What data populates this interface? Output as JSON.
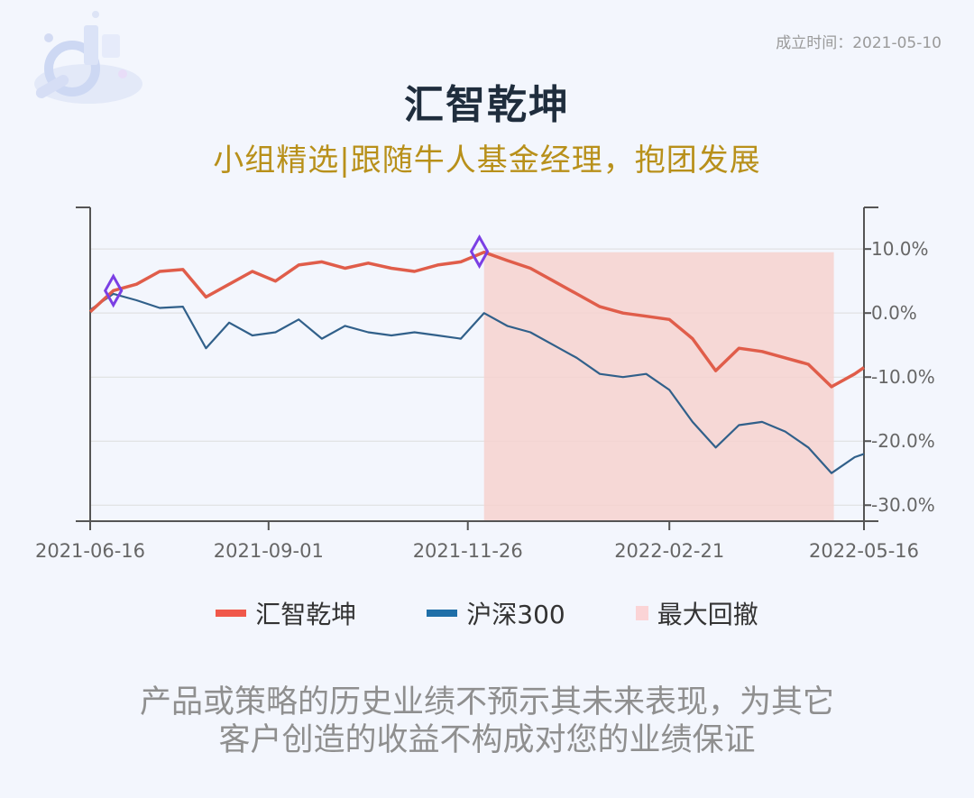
{
  "header": {
    "founded": "成立时间：2021-05-10",
    "title": "汇智乾坤",
    "subtitle": "小组精选|跟随牛人基金经理，抱团发展"
  },
  "legend": {
    "fund": "汇智乾坤",
    "index": "沪深300",
    "drawdown": "最大回撤"
  },
  "disclaimer": {
    "line1": "产品或策略的历史业绩不预示其未来表现，为其它",
    "line2": "客户创造的收益不构成对您的业绩保证"
  },
  "colors": {
    "fund": "#e05d4a",
    "index": "#31608a",
    "drawdown": "#f6d2cf",
    "marker": "#7b3fe4",
    "axis": "#555555",
    "grid": "#dddddd"
  },
  "chart_data": {
    "type": "line",
    "x_ticks": [
      "2021-06-16",
      "2021-09-01",
      "2021-11-26",
      "2022-02-21",
      "2022-05-16"
    ],
    "y_ticks": [
      "10.0%",
      "0.0%",
      "-10.0%",
      "-20.0%",
      "-30.0%"
    ],
    "ylim": [
      -32.5,
      16.5
    ],
    "grid": true,
    "legend_position": "bottom",
    "series": [
      {
        "name": "汇智乾坤",
        "x": [
          "2021-06-16",
          "2021-06-26",
          "2021-07-06",
          "2021-07-16",
          "2021-07-26",
          "2021-08-05",
          "2021-08-15",
          "2021-08-25",
          "2021-09-04",
          "2021-09-14",
          "2021-09-24",
          "2021-10-04",
          "2021-10-14",
          "2021-10-24",
          "2021-11-03",
          "2021-11-13",
          "2021-11-23",
          "2021-12-03",
          "2021-12-13",
          "2021-12-23",
          "2022-01-02",
          "2022-01-12",
          "2022-01-22",
          "2022-02-01",
          "2022-02-11",
          "2022-02-21",
          "2022-03-03",
          "2022-03-13",
          "2022-03-23",
          "2022-04-02",
          "2022-04-12",
          "2022-04-22",
          "2022-05-02",
          "2022-05-12",
          "2022-05-16"
        ],
        "y": [
          0.2,
          3.5,
          4.5,
          6.5,
          6.8,
          2.5,
          4.5,
          6.5,
          5.0,
          7.5,
          8.0,
          7.0,
          7.8,
          7.0,
          6.5,
          7.5,
          8.0,
          9.5,
          8.2,
          7.0,
          5.0,
          3.0,
          1.0,
          0.0,
          -0.5,
          -1.0,
          -4.0,
          -9.0,
          -5.5,
          -6.0,
          -7.0,
          -8.0,
          -11.5,
          -9.5,
          -8.5
        ]
      },
      {
        "name": "沪深300",
        "x": [
          "2021-06-16",
          "2021-06-26",
          "2021-07-06",
          "2021-07-16",
          "2021-07-26",
          "2021-08-05",
          "2021-08-15",
          "2021-08-25",
          "2021-09-04",
          "2021-09-14",
          "2021-09-24",
          "2021-10-04",
          "2021-10-14",
          "2021-10-24",
          "2021-11-03",
          "2021-11-13",
          "2021-11-23",
          "2021-12-03",
          "2021-12-13",
          "2021-12-23",
          "2022-01-02",
          "2022-01-12",
          "2022-01-22",
          "2022-02-01",
          "2022-02-11",
          "2022-02-21",
          "2022-03-03",
          "2022-03-13",
          "2022-03-23",
          "2022-04-02",
          "2022-04-12",
          "2022-04-22",
          "2022-05-02",
          "2022-05-12",
          "2022-05-16"
        ],
        "y": [
          0.5,
          3.0,
          2.0,
          0.8,
          1.0,
          -5.5,
          -1.5,
          -3.5,
          -3.0,
          -1.0,
          -4.0,
          -2.0,
          -3.0,
          -3.5,
          -3.0,
          -3.5,
          -4.0,
          0.0,
          -2.0,
          -3.0,
          -5.0,
          -7.0,
          -9.5,
          -10.0,
          -9.5,
          -12.0,
          -17.0,
          -21.0,
          -17.5,
          -17.0,
          -18.5,
          -21.0,
          -25.0,
          -22.5,
          -22.0
        ]
      }
    ],
    "max_drawdown": {
      "start": "2021-12-03",
      "end": "2022-05-03"
    },
    "markers": [
      {
        "x": "2021-06-26",
        "series": "汇智乾坤",
        "y": 3.5
      },
      {
        "x": "2021-12-01",
        "series": "汇智乾坤",
        "y": 9.6
      }
    ]
  }
}
